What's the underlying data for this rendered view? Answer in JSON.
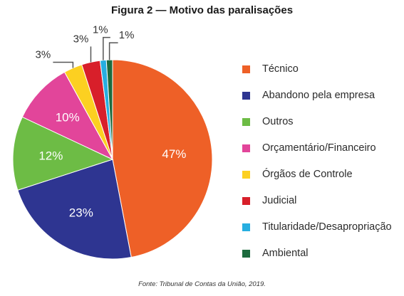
{
  "chart_data": {
    "type": "pie",
    "title": "Figura 2 — Motivo das paralisações",
    "slices": [
      {
        "label": "Técnico",
        "value": 47,
        "value_label": "47%",
        "color": "#ee6027"
      },
      {
        "label": "Abandono pela empresa",
        "value": 23,
        "value_label": "23%",
        "color": "#2e3591"
      },
      {
        "label": "Outros",
        "value": 12,
        "value_label": "12%",
        "color": "#6dbc45"
      },
      {
        "label": "Orçamentário/Financeiro",
        "value": 10,
        "value_label": "10%",
        "color": "#e2459a"
      },
      {
        "label": "Órgãos de Controle",
        "value": 3,
        "value_label": "3%",
        "color": "#fcd021"
      },
      {
        "label": "Judicial",
        "value": 3,
        "value_label": "3%",
        "color": "#d81f2a"
      },
      {
        "label": "Titularidade/Desapropriação",
        "value": 1,
        "value_label": "1%",
        "color": "#27aee0"
      },
      {
        "label": "Ambiental",
        "value": 1,
        "value_label": "1%",
        "color": "#1d6b3e"
      }
    ],
    "legend_position": "right",
    "start_angle": "12 o'clock",
    "direction": "clockwise"
  },
  "source": "Fonte: Tribunal de Contas da União, 2019."
}
